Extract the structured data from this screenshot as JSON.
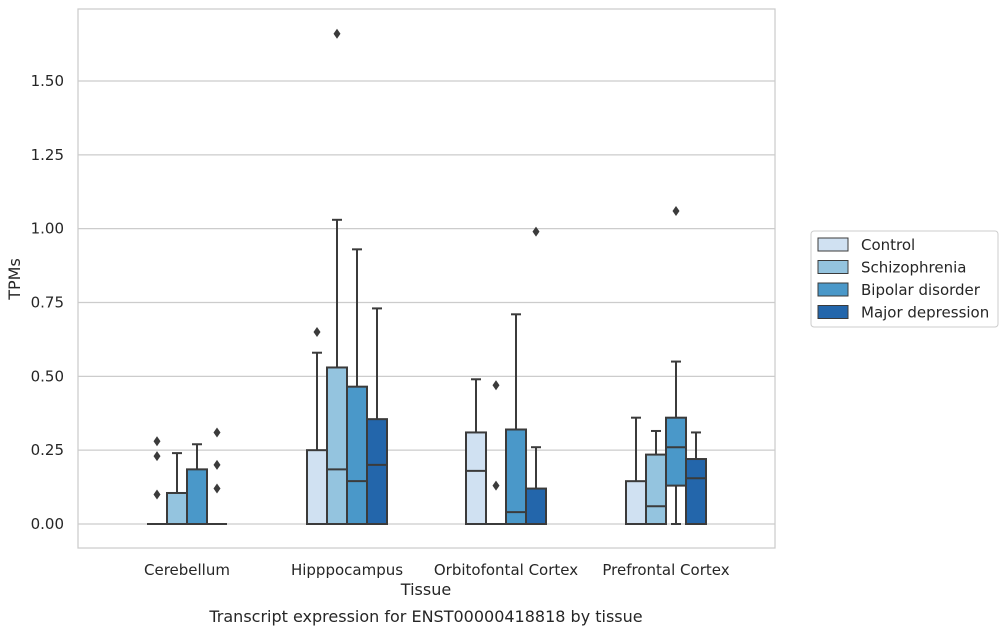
{
  "chart_data": {
    "type": "boxplot",
    "title": "",
    "caption": "Transcript expression for ENST00000418818 by tissue",
    "xlabel": "Tissue",
    "ylabel": "TPMs",
    "ylim": [
      -0.08,
      1.75
    ],
    "yticks": [
      0.0,
      0.25,
      0.5,
      0.75,
      1.0,
      1.25,
      1.5
    ],
    "ytick_labels": [
      "0.00",
      "0.25",
      "0.50",
      "0.75",
      "1.00",
      "1.25",
      "1.50"
    ],
    "grid": "horizontal",
    "legend_position": "right",
    "categories": [
      "Cerebellum",
      "Hipppocampus",
      "Orbitofontal Cortex",
      "Prefrontal Cortex"
    ],
    "series": [
      {
        "name": "Control",
        "color": "#d0e1f2",
        "boxes": [
          {
            "whislo": 0.0,
            "q1": 0.0,
            "med": 0.0,
            "q3": 0.0,
            "whishi": 0.0,
            "fliers": [
              0.1,
              0.23,
              0.28
            ]
          },
          {
            "whislo": 0.0,
            "q1": 0.0,
            "med": 0.0,
            "q3": 0.25,
            "whishi": 0.58,
            "fliers": [
              0.65
            ]
          },
          {
            "whislo": 0.0,
            "q1": 0.0,
            "med": 0.18,
            "q3": 0.31,
            "whishi": 0.49,
            "fliers": []
          },
          {
            "whislo": 0.0,
            "q1": 0.0,
            "med": 0.0,
            "q3": 0.145,
            "whishi": 0.36,
            "fliers": []
          }
        ]
      },
      {
        "name": "Schizophrenia",
        "color": "#94c4df",
        "boxes": [
          {
            "whislo": 0.0,
            "q1": 0.0,
            "med": 0.0,
            "q3": 0.105,
            "whishi": 0.24,
            "fliers": []
          },
          {
            "whislo": 0.0,
            "q1": 0.0,
            "med": 0.185,
            "q3": 0.53,
            "whishi": 1.03,
            "fliers": [
              1.66
            ]
          },
          {
            "whislo": 0.0,
            "q1": 0.0,
            "med": 0.0,
            "q3": 0.0,
            "whishi": 0.0,
            "fliers": [
              0.13,
              0.47
            ]
          },
          {
            "whislo": 0.0,
            "q1": 0.0,
            "med": 0.06,
            "q3": 0.235,
            "whishi": 0.315,
            "fliers": []
          }
        ]
      },
      {
        "name": "Bipolar disorder",
        "color": "#4a98c9",
        "boxes": [
          {
            "whislo": 0.0,
            "q1": 0.0,
            "med": 0.0,
            "q3": 0.185,
            "whishi": 0.27,
            "fliers": []
          },
          {
            "whislo": 0.0,
            "q1": 0.0,
            "med": 0.145,
            "q3": 0.465,
            "whishi": 0.93,
            "fliers": []
          },
          {
            "whislo": 0.0,
            "q1": 0.0,
            "med": 0.04,
            "q3": 0.32,
            "whishi": 0.71,
            "fliers": []
          },
          {
            "whislo": 0.0,
            "q1": 0.13,
            "med": 0.26,
            "q3": 0.36,
            "whishi": 0.55,
            "fliers": [
              1.06
            ]
          }
        ]
      },
      {
        "name": "Major depression",
        "color": "#2366ab",
        "boxes": [
          {
            "whislo": 0.0,
            "q1": 0.0,
            "med": 0.0,
            "q3": 0.0,
            "whishi": 0.0,
            "fliers": [
              0.12,
              0.2,
              0.31
            ]
          },
          {
            "whislo": 0.0,
            "q1": 0.0,
            "med": 0.2,
            "q3": 0.355,
            "whishi": 0.73,
            "fliers": []
          },
          {
            "whislo": 0.0,
            "q1": 0.0,
            "med": 0.0,
            "q3": 0.12,
            "whishi": 0.26,
            "fliers": [
              0.99
            ]
          },
          {
            "whislo": 0.0,
            "q1": 0.0,
            "med": 0.155,
            "q3": 0.22,
            "whishi": 0.31,
            "fliers": []
          }
        ]
      }
    ]
  }
}
